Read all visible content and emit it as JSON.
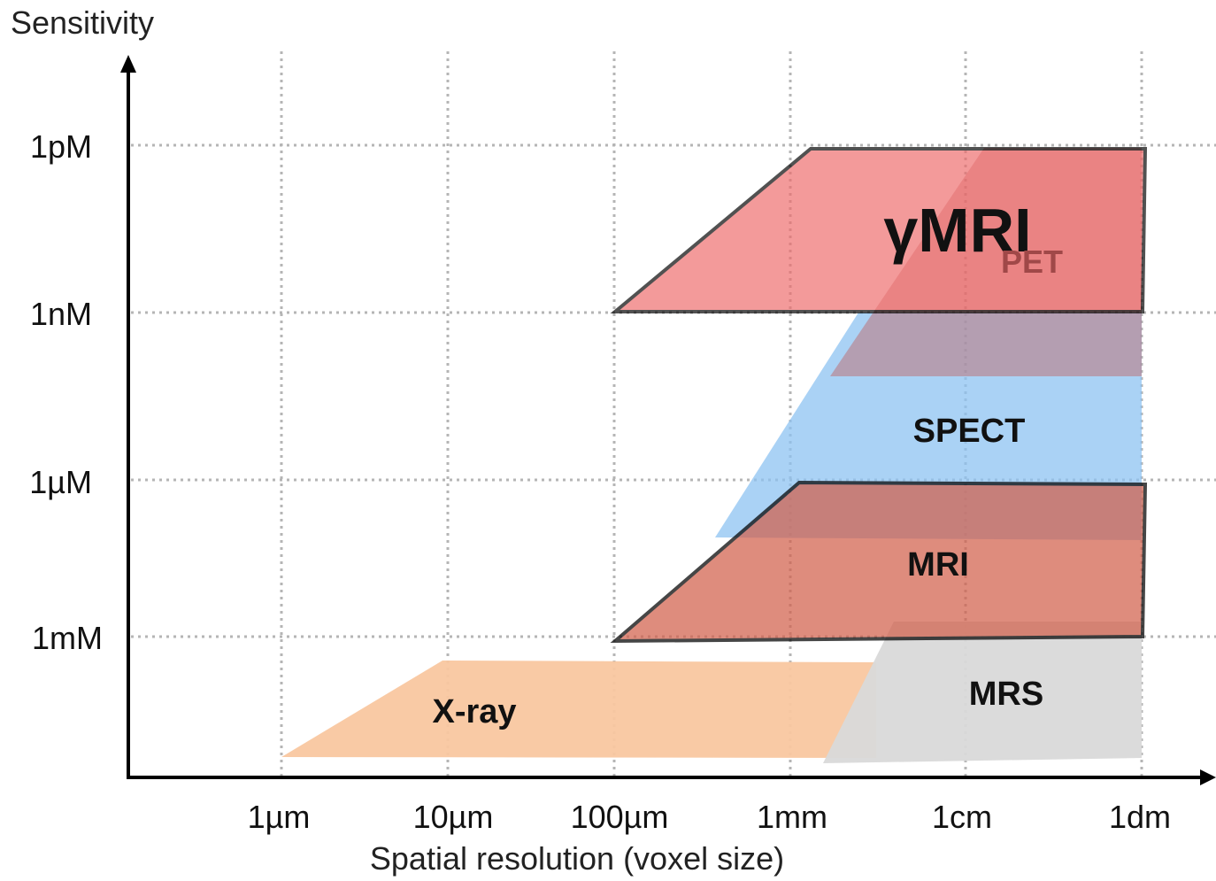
{
  "diagram": {
    "y_axis_title": "Sensitivity",
    "x_axis_title": "Spatial resolution (voxel size)",
    "y_ticks": [
      "1pM",
      "1nM",
      "1µM",
      "1mM"
    ],
    "x_ticks": [
      "1µm",
      "10µm",
      "100µm",
      "1mm",
      "1cm",
      "1dm"
    ],
    "regions": {
      "xray": {
        "label": "X-ray",
        "color": "#f9c7a0"
      },
      "mrs": {
        "label": "MRS",
        "color": "#d9d9d9"
      },
      "spect": {
        "label": "SPECT",
        "color": "#8ec3f2"
      },
      "pet": {
        "label": "PET",
        "color": "#c06060"
      },
      "mri": {
        "label": "MRI",
        "color": "#d2604c"
      },
      "gmri": {
        "label": "γMRI",
        "color": "#ee6b6b"
      }
    }
  }
}
